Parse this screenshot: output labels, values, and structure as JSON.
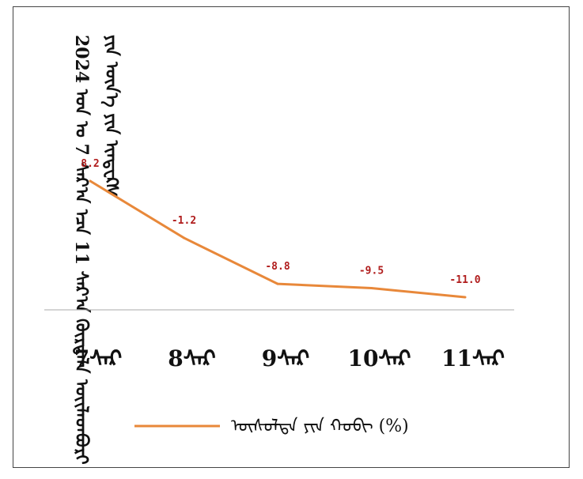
{
  "chart_data": {
    "type": "line",
    "title": "2024 ᠣᠨ ᠤ 7 ᠰᠠᠷ᠎ᠠ ᠡᠴᠡ 11 ᠰᠠᠷ᠎ᠠ ᠬᠦᠷᠲᠡᠯᠡ ᠦᠢᠯᠡᠳᠪᠦᠷᠢ ᠶᠢᠨ ᠦᠨ᠎ᠡ ᠶᠢᠨ ᠢᠨᠳᠧᠺᠰ",
    "categories": [
      "7ᠰᠠᠷ",
      "8ᠰᠠᠷ",
      "9ᠰᠠᠷ",
      "10ᠰᠠᠷ",
      "11ᠰᠠᠷ"
    ],
    "series": [
      {
        "name": "ᠥᠰᠥᠯᠲᠡ ᠶᠢᠨ ᠬᠤᠪᠢ (%)",
        "values": [
          8.2,
          -1.2,
          -8.8,
          -9.5,
          -11.0
        ],
        "labels": [
          "8.2",
          "-1.2",
          "-8.8",
          "-9.5",
          "-11.0"
        ],
        "color": "#e8883a"
      }
    ],
    "xlabel": "",
    "ylabel": "",
    "ylim": [
      -11.0,
      8.2
    ],
    "grid": false,
    "legend": "bottom",
    "label_color": "#b01c1c",
    "axis_color": "#aaaaaa"
  }
}
